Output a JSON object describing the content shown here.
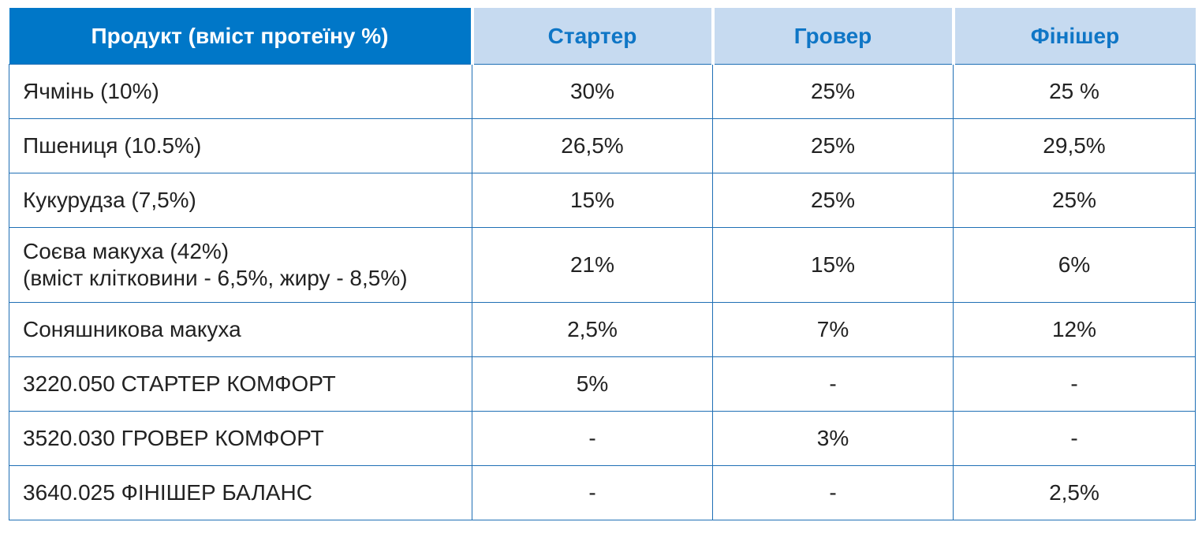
{
  "table": {
    "headers": [
      "Продукт (вміст протеїну %)",
      "Стартер",
      "Гровер",
      "Фінішер"
    ],
    "rows": [
      {
        "product": "Ячмінь (10%)",
        "starter": "30%",
        "grower": "25%",
        "finisher": "25 %"
      },
      {
        "product": "Пшениця (10.5%)",
        "starter": "26,5%",
        "grower": "25%",
        "finisher": "29,5%"
      },
      {
        "product": "Кукурудза (7,5%)",
        "starter": "15%",
        "grower": "25%",
        "finisher": "25%"
      },
      {
        "product": "Соєва макуха (42%)",
        "product_note": "(вміст клітковини - 6,5%, жиру - 8,5%)",
        "starter": "21%",
        "grower": "15%",
        "finisher": "6%"
      },
      {
        "product": "Соняшникова макуха",
        "starter": "2,5%",
        "grower": "7%",
        "finisher": "12%"
      },
      {
        "product": "3220.050  СТАРТЕР КОМФОРТ",
        "starter": "5%",
        "grower": "-",
        "finisher": "-"
      },
      {
        "product": "3520.030  ГРОВЕР КОМФОРТ",
        "starter": "-",
        "grower": "3%",
        "finisher": "-"
      },
      {
        "product": "3640.025  ФІНІШЕР БАЛАНС",
        "starter": "-",
        "grower": "-",
        "finisher": "2,5%"
      }
    ]
  },
  "colors": {
    "header_primary_bg": "#0077c8",
    "header_secondary_bg": "#c6daf0",
    "header_secondary_text": "#0f76c6",
    "border": "#1f6fb5"
  }
}
